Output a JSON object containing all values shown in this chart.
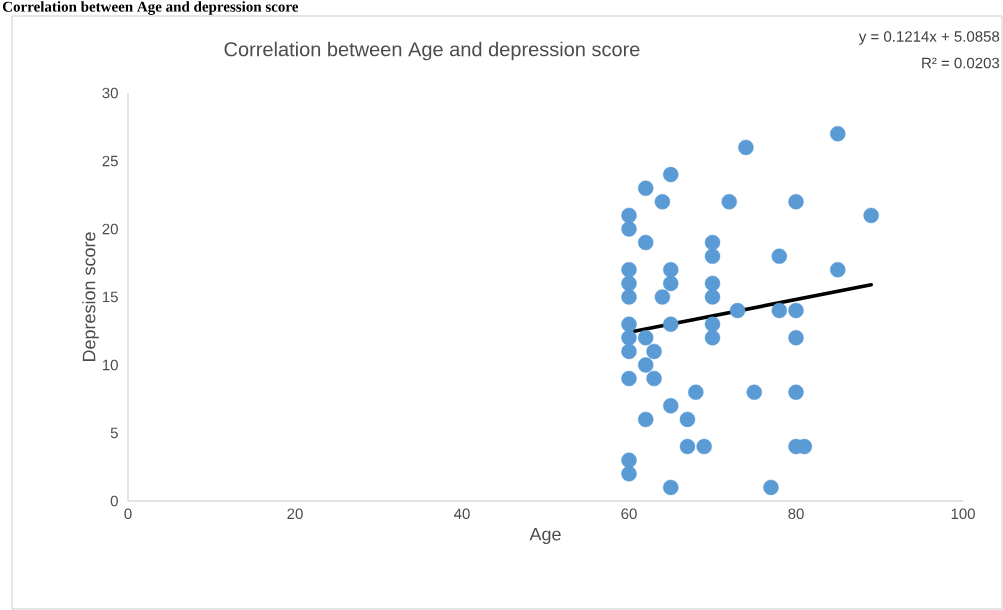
{
  "chart_data": {
    "type": "scatter",
    "title": "Correlation between Age and depression score",
    "xlabel": "Age",
    "ylabel": "Depresion score",
    "annotations": [
      "Correlation between Age and depression score",
      "y = 0.1214x + 5.0858",
      "R² = 0.0203"
    ],
    "xlim": [
      0,
      100
    ],
    "xticks": [
      0,
      20,
      40,
      60,
      80,
      100
    ],
    "ylim": [
      0,
      30
    ],
    "yticks": [
      0,
      5,
      10,
      15,
      20,
      25,
      30
    ],
    "marker": "circle",
    "series": [
      {
        "color": "#5b9bd5",
        "x": [
          60,
          60,
          60,
          60,
          60,
          60,
          60,
          60,
          60,
          60,
          60,
          62,
          62,
          62,
          62,
          62,
          63,
          63,
          64,
          64,
          65,
          65,
          65,
          65,
          65,
          65,
          67,
          67,
          68,
          69,
          70,
          70,
          70,
          70,
          70,
          70,
          72,
          73,
          74,
          75,
          77,
          78,
          78,
          80,
          80,
          80,
          80,
          80,
          81,
          85,
          85,
          89
        ],
        "values": [
          21,
          20,
          17,
          16,
          15,
          13,
          12,
          11,
          9,
          3,
          2,
          23,
          19,
          12,
          10,
          6,
          11,
          9,
          22,
          15,
          24,
          17,
          16,
          13,
          7,
          1,
          6,
          4,
          8,
          4,
          19,
          18,
          16,
          15,
          13,
          12,
          22,
          14,
          26,
          8,
          1,
          18,
          14,
          22,
          14,
          12,
          8,
          4,
          4,
          27,
          17,
          21
        ]
      },
      {
        "type": "line",
        "color": "#000000",
        "marker": "none",
        "x": [
          60,
          89
        ],
        "values": [
          12.4,
          15.9
        ]
      }
    ]
  }
}
